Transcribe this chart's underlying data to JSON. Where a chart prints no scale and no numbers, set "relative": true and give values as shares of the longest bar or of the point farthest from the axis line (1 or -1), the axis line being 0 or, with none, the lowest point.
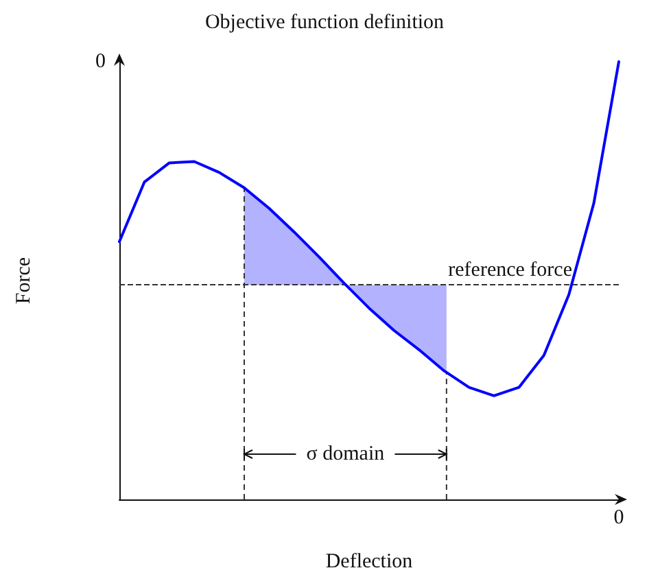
{
  "chart_data": {
    "type": "line",
    "title": "Objective function definition",
    "xlabel": "Deflection",
    "ylabel": "Force",
    "relative": true,
    "marker": "none",
    "line_style": "solid",
    "categories": [
      null,
      null,
      null,
      null,
      null,
      null,
      null,
      null,
      null,
      null,
      null,
      null,
      null,
      null,
      null,
      null,
      null,
      null,
      null,
      null,
      null
    ],
    "series": [
      {
        "color": "#0000ff",
        "values": [
          0.589,
          0.725,
          0.769,
          0.772,
          0.747,
          0.712,
          0.665,
          0.611,
          0.554,
          0.494,
          0.437,
          0.386,
          0.342,
          0.294,
          0.256,
          0.237,
          0.256,
          0.329,
          0.468,
          0.677,
          1.0
        ]
      }
    ],
    "ref_lines": [
      {
        "axis": "y",
        "value": 0.49,
        "label": "reference force",
        "color": "#333333",
        "line_style": "dashed"
      }
    ],
    "annotations": [
      "σ domain",
      "0",
      "0"
    ]
  }
}
